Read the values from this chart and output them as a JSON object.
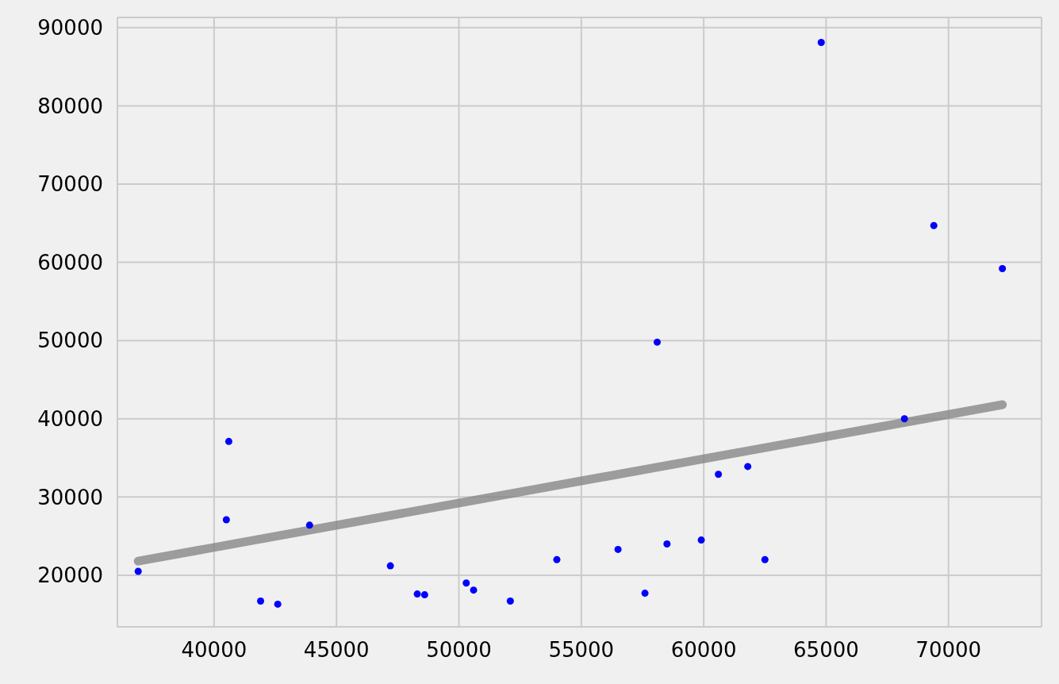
{
  "chart_data": {
    "type": "scatter",
    "xlim": [
      36050,
      73800
    ],
    "ylim": [
      13400,
      91300
    ],
    "xticks": [
      40000,
      45000,
      50000,
      55000,
      60000,
      65000,
      70000
    ],
    "yticks": [
      20000,
      30000,
      40000,
      50000,
      60000,
      70000,
      80000,
      90000
    ],
    "grid": true,
    "series": [
      {
        "marker": "circle",
        "color": "#0000ff",
        "x": [
          36900,
          40500,
          40600,
          41900,
          42600,
          43900,
          47200,
          48300,
          48600,
          50300,
          50600,
          52100,
          54000,
          56500,
          57600,
          58100,
          58500,
          59900,
          60600,
          61800,
          62500,
          64800,
          68200,
          69400,
          72200
        ],
        "values": [
          20500,
          27100,
          37100,
          16700,
          16300,
          26400,
          21200,
          17600,
          17500,
          19000,
          18100,
          16700,
          22000,
          23300,
          17700,
          49800,
          24000,
          24500,
          32900,
          33900,
          22000,
          88100,
          40000,
          64700,
          59200
        ]
      },
      {
        "type": "line",
        "marker": "none",
        "color": "#808080",
        "x": [
          36900,
          72200
        ],
        "values": [
          21800,
          41800
        ]
      }
    ]
  }
}
